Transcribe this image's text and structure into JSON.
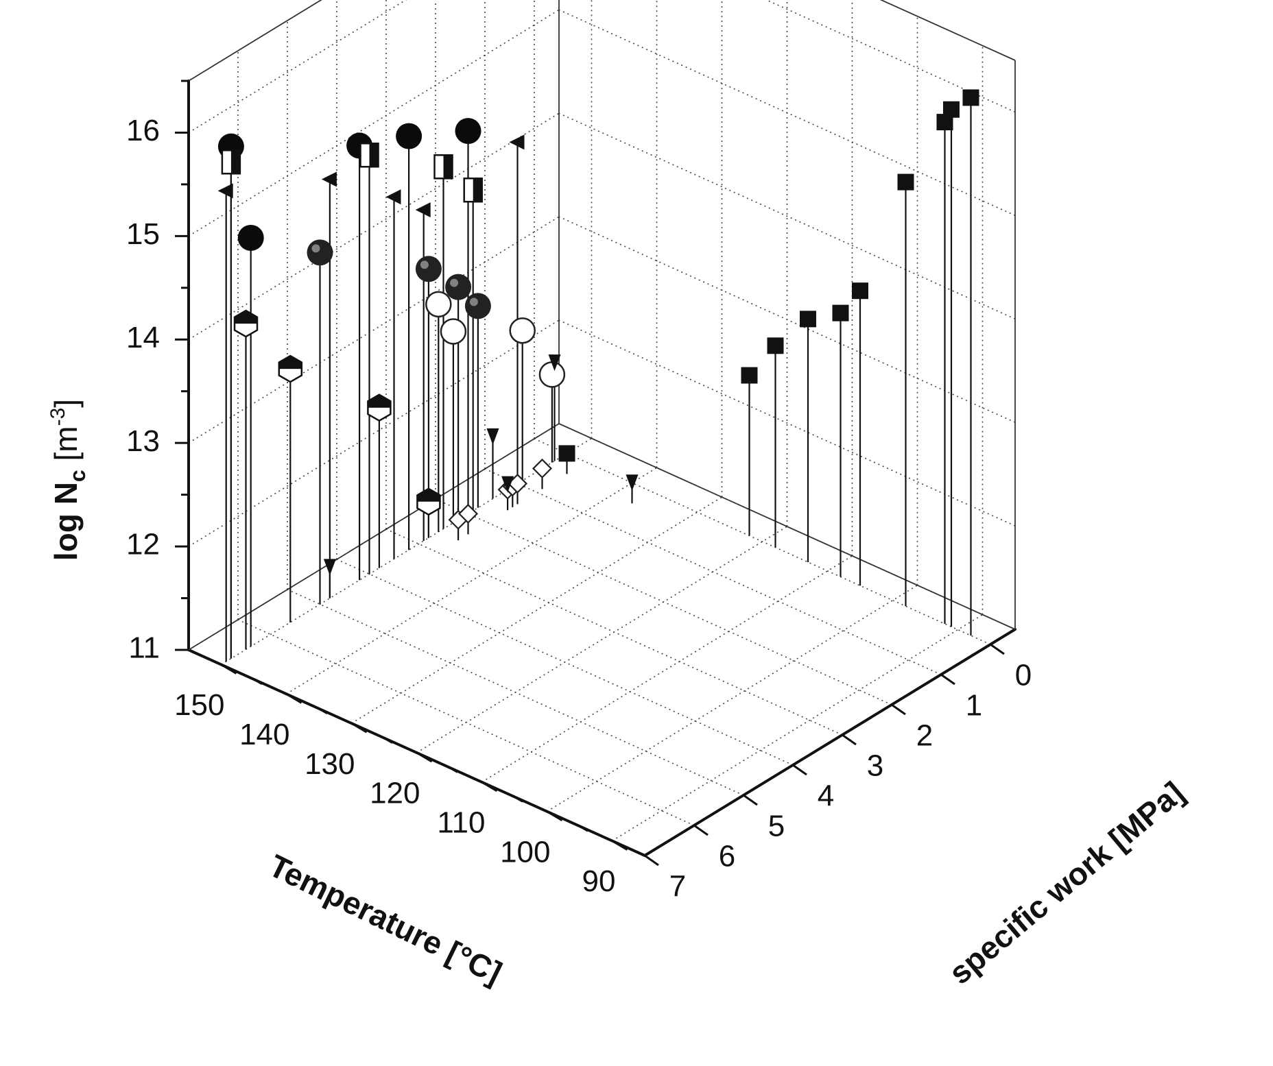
{
  "chart_data": {
    "type": "scatter",
    "projection": "3d",
    "style": "drop-lines",
    "grid": true,
    "axes": {
      "x": {
        "label": "Temperature [°C]",
        "range": [
          85,
          155
        ],
        "ticks": [
          "90",
          "100",
          "110",
          "120",
          "130",
          "140",
          "150"
        ]
      },
      "y": {
        "label": "specific work [MPa]",
        "range": [
          -0.5,
          7
        ],
        "ticks": [
          "0",
          "1",
          "2",
          "3",
          "4",
          "5",
          "6",
          "7"
        ]
      },
      "z": {
        "label_main": "log N",
        "label_sub": "c",
        "label_unit": " [m",
        "label_exp": "-3",
        "label_close": "]",
        "range": [
          11,
          16.5
        ],
        "ticks": [
          "11",
          "12",
          "13",
          "14",
          "15",
          "16"
        ]
      }
    },
    "series": [
      {
        "marker": "square-filled",
        "points": [
          {
            "x": 88,
            "y": 0,
            "z": 16.2
          },
          {
            "x": 91,
            "y": 0,
            "z": 16.0
          },
          {
            "x": 92,
            "y": 0,
            "z": 15.85
          },
          {
            "x": 98,
            "y": 0,
            "z": 15.1
          },
          {
            "x": 105,
            "y": 0,
            "z": 13.85
          },
          {
            "x": 108,
            "y": 0,
            "z": 13.55
          },
          {
            "x": 113,
            "y": 0,
            "z": 13.35
          },
          {
            "x": 118,
            "y": 0,
            "z": 12.95
          },
          {
            "x": 122,
            "y": 0,
            "z": 12.55
          },
          {
            "x": 150,
            "y": 0,
            "z": 11
          }
        ]
      },
      {
        "marker": "diamond-open",
        "points": [
          {
            "x": 150,
            "y": 2.2,
            "z": 11
          },
          {
            "x": 150,
            "y": 2.0,
            "z": 11
          },
          {
            "x": 150,
            "y": 1.2,
            "z": 11
          },
          {
            "x": 150,
            "y": 1.1,
            "z": 11
          },
          {
            "x": 150,
            "y": 1.0,
            "z": 11
          },
          {
            "x": 150,
            "y": 0.5,
            "z": 11
          }
        ]
      },
      {
        "marker": "circle-filled",
        "points": [
          {
            "x": 150,
            "y": 2.0,
            "z": 14.7
          },
          {
            "x": 150,
            "y": 3.2,
            "z": 15.0
          },
          {
            "x": 150,
            "y": 4.2,
            "z": 15.2
          },
          {
            "x": 150,
            "y": 6.8,
            "z": 15.95
          },
          {
            "x": 150,
            "y": 6.4,
            "z": 14.95
          }
        ]
      },
      {
        "marker": "circle-shaded",
        "points": [
          {
            "x": 150,
            "y": 5.0,
            "z": 14.4
          },
          {
            "x": 150,
            "y": 2.8,
            "z": 13.6
          },
          {
            "x": 150,
            "y": 2.2,
            "z": 13.25
          },
          {
            "x": 150,
            "y": 1.8,
            "z": 12.95
          }
        ]
      },
      {
        "marker": "circle-open",
        "points": [
          {
            "x": 150,
            "y": 2.6,
            "z": 13.2
          },
          {
            "x": 150,
            "y": 2.3,
            "z": 12.85
          },
          {
            "x": 150,
            "y": 0.9,
            "z": 12.45
          },
          {
            "x": 150,
            "y": 0.3,
            "z": 11.85
          }
        ]
      },
      {
        "marker": "square-half",
        "points": [
          {
            "x": 150,
            "y": 2.5,
            "z": 14.5
          },
          {
            "x": 150,
            "y": 1.9,
            "z": 14.1
          },
          {
            "x": 150,
            "y": 4.0,
            "z": 15.05
          },
          {
            "x": 150,
            "y": 6.8,
            "z": 15.8
          }
        ]
      },
      {
        "marker": "triangle-left",
        "points": [
          {
            "x": 150,
            "y": 1.0,
            "z": 14.3
          },
          {
            "x": 150,
            "y": 3.5,
            "z": 14.5
          },
          {
            "x": 150,
            "y": 4.8,
            "z": 15.05
          },
          {
            "x": 150,
            "y": 2.9,
            "z": 14.2
          },
          {
            "x": 150,
            "y": 6.9,
            "z": 15.55
          }
        ]
      },
      {
        "marker": "triangle-down",
        "points": [
          {
            "x": 150,
            "y": 0.25,
            "z": 11.95
          },
          {
            "x": 150,
            "y": 1.5,
            "z": 11.6
          },
          {
            "x": 150,
            "y": 4.8,
            "z": 11.3
          },
          {
            "x": 150,
            "y": 1.2,
            "z": 11.05
          },
          {
            "x": 140,
            "y": 0,
            "z": 11
          }
        ]
      },
      {
        "marker": "hexagon-half",
        "points": [
          {
            "x": 150,
            "y": 2.8,
            "z": 11.35
          },
          {
            "x": 150,
            "y": 3.8,
            "z": 12.55
          },
          {
            "x": 150,
            "y": 5.6,
            "z": 13.45
          },
          {
            "x": 150,
            "y": 6.5,
            "z": 14.15
          }
        ]
      }
    ]
  }
}
